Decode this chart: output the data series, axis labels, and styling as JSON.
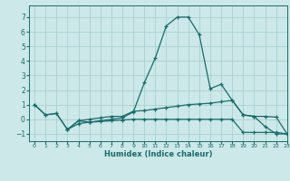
{
  "title": "",
  "xlabel": "Humidex (Indice chaleur)",
  "xlim": [
    -0.5,
    23
  ],
  "ylim": [
    -1.5,
    7.8
  ],
  "yticks": [
    -1,
    0,
    1,
    2,
    3,
    4,
    5,
    6,
    7
  ],
  "xticks": [
    0,
    1,
    2,
    3,
    4,
    5,
    6,
    7,
    8,
    9,
    10,
    11,
    12,
    13,
    14,
    15,
    16,
    17,
    18,
    19,
    20,
    21,
    22,
    23
  ],
  "background_color": "#cce8e8",
  "grid_color": "#aacfcf",
  "line_color": "#1a6b6b",
  "curves": [
    {
      "x": [
        0,
        1,
        2,
        3,
        4,
        5,
        6,
        7,
        8,
        9,
        10,
        11,
        12,
        13,
        14,
        15,
        16,
        17,
        18,
        19,
        20,
        21,
        22,
        23
      ],
      "y": [
        1.0,
        0.3,
        0.4,
        -0.7,
        -0.3,
        -0.2,
        -0.1,
        0.0,
        0.1,
        0.5,
        2.5,
        4.2,
        6.4,
        7.0,
        7.0,
        5.8,
        2.1,
        2.4,
        1.3,
        0.3,
        0.2,
        -0.5,
        -1.0,
        -1.0
      ]
    },
    {
      "x": [
        0,
        1,
        2,
        3,
        4,
        5,
        6,
        7,
        8,
        9,
        10,
        11,
        12,
        13,
        14,
        15,
        16,
        17,
        18,
        19,
        20,
        21,
        22,
        23
      ],
      "y": [
        1.0,
        0.3,
        0.4,
        -0.7,
        -0.1,
        0.0,
        0.1,
        0.2,
        0.2,
        0.55,
        0.6,
        0.7,
        0.8,
        0.9,
        1.0,
        1.05,
        1.1,
        1.2,
        1.3,
        0.3,
        0.2,
        0.2,
        0.15,
        -1.0
      ]
    },
    {
      "x": [
        3,
        4,
        5,
        6,
        7,
        8,
        9,
        10,
        11,
        12,
        13,
        14,
        15,
        16,
        17,
        18,
        19,
        20,
        21,
        22,
        23
      ],
      "y": [
        -0.7,
        -0.1,
        -0.2,
        -0.15,
        -0.1,
        -0.05,
        0.0,
        0.0,
        0.0,
        0.0,
        0.0,
        0.0,
        0.0,
        0.0,
        0.0,
        0.0,
        -0.9,
        -0.9,
        -0.9,
        -0.9,
        -1.0
      ]
    }
  ]
}
